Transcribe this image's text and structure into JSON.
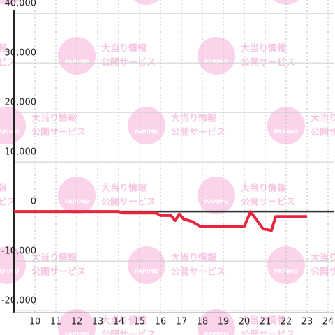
{
  "chart_data": {
    "type": "line",
    "watermark": {
      "brand": "PAPIMO",
      "line1": "大当り情報",
      "line2": "公開サービス"
    },
    "x": [
      9,
      14,
      14.2,
      15.8,
      16,
      16.5,
      16.7,
      16.9,
      17.1,
      17.5,
      17.9,
      20,
      20.3,
      20.9,
      21.3,
      21.5,
      23
    ],
    "series": [
      {
        "color": "#e8253f",
        "values": [
          0,
          0,
          -300,
          -300,
          -800,
          -800,
          -1800,
          -500,
          -1500,
          -2000,
          -3000,
          -3000,
          0,
          -3500,
          -3800,
          -1000,
          -1000
        ]
      }
    ],
    "xlim": [
      9,
      24.3
    ],
    "xticks": [
      10,
      11,
      12,
      13,
      14,
      15,
      16,
      17,
      18,
      19,
      20,
      21,
      22,
      23,
      24
    ],
    "ylim": [
      -20400,
      42700
    ],
    "yticks": [
      {
        "value": -20000,
        "label": "-20,000"
      },
      {
        "value": -10000,
        "label": "-10,000"
      },
      0,
      {
        "value": 10000,
        "label": "10,000"
      },
      {
        "value": 20000,
        "label": "20,000"
      },
      {
        "value": 30000,
        "label": "30,000"
      },
      {
        "value": 40000,
        "label": "40,000"
      }
    ],
    "grid": true
  }
}
